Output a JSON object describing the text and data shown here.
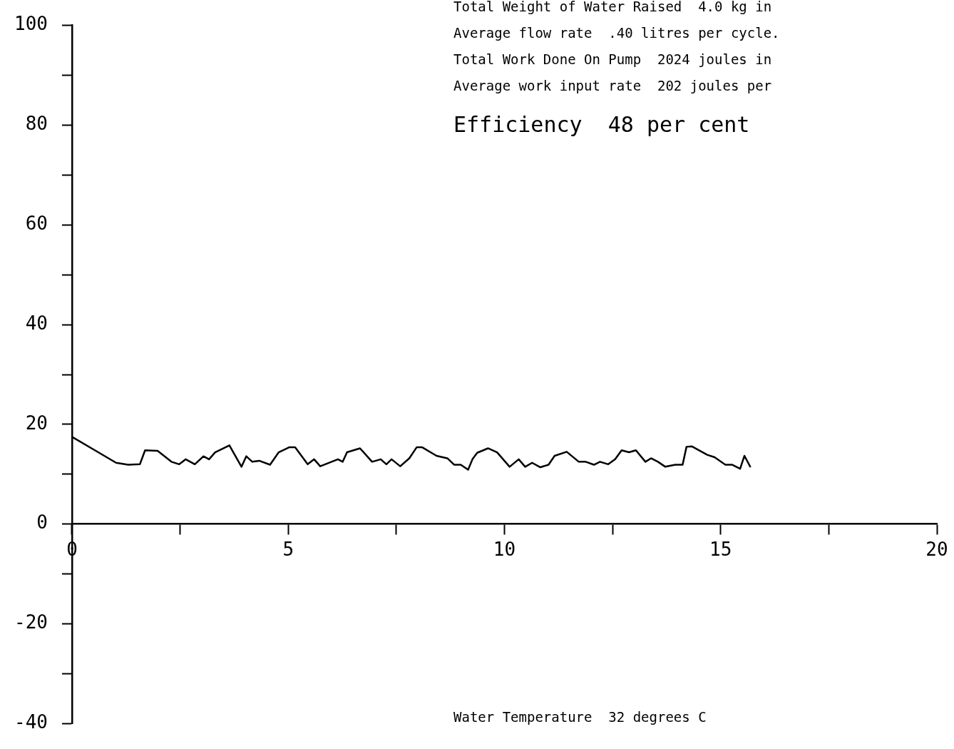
{
  "chart_data": {
    "type": "line",
    "x": [
      0,
      0.53,
      1.02,
      1.3,
      1.57,
      1.69,
      1.98,
      2.3,
      2.48,
      2.63,
      2.84,
      3.04,
      3.17,
      3.31,
      3.64,
      3.92,
      4.03,
      4.17,
      4.33,
      4.58,
      4.78,
      5.02,
      5.16,
      5.45,
      5.6,
      5.74,
      6.15,
      6.26,
      6.36,
      6.66,
      6.94,
      7.14,
      7.27,
      7.39,
      7.59,
      7.8,
      7.97,
      8.1,
      8.43,
      8.68,
      8.84,
      8.99,
      9.16,
      9.26,
      9.37,
      9.62,
      9.83,
      10.12,
      10.33,
      10.48,
      10.64,
      10.83,
      11.02,
      11.16,
      11.44,
      11.72,
      11.88,
      12.07,
      12.21,
      12.4,
      12.56,
      12.71,
      12.88,
      13.04,
      13.26,
      13.39,
      13.55,
      13.72,
      13.95,
      14.12,
      14.21,
      14.33,
      14.69,
      14.86,
      15.11,
      15.27,
      15.45,
      15.55,
      15.69
    ],
    "series": [
      {
        "color": "#000000",
        "values": [
          17.5,
          14.8,
          12.3,
          11.9,
          12.0,
          14.8,
          14.7,
          12.5,
          12.0,
          13.0,
          12.0,
          13.6,
          13.0,
          14.4,
          15.8,
          11.5,
          13.6,
          12.5,
          12.7,
          11.9,
          14.4,
          15.4,
          15.4,
          12.0,
          13.0,
          11.6,
          13.0,
          12.5,
          14.4,
          15.2,
          12.5,
          13.0,
          12.0,
          13.0,
          11.6,
          13.2,
          15.4,
          15.4,
          13.7,
          13.2,
          11.9,
          11.9,
          10.9,
          13.0,
          14.3,
          15.2,
          14.4,
          11.5,
          13.0,
          11.5,
          12.3,
          11.4,
          11.9,
          13.7,
          14.5,
          12.5,
          12.5,
          11.9,
          12.5,
          12.0,
          13.0,
          14.8,
          14.4,
          14.8,
          12.5,
          13.2,
          12.5,
          11.5,
          11.9,
          11.9,
          15.5,
          15.6,
          13.9,
          13.4,
          11.9,
          11.9,
          11.1,
          13.7,
          11.4
        ]
      }
    ],
    "xlim": [
      0,
      20
    ],
    "xticks": [
      0,
      {
        "value": 2.5,
        "label": null
      },
      5,
      {
        "value": 7.5,
        "label": null
      },
      10,
      {
        "value": 12.5,
        "label": null
      },
      15,
      {
        "value": 17.5,
        "label": null
      },
      20
    ],
    "ylim": [
      -40,
      100
    ],
    "yticks": [
      -40,
      {
        "value": -30,
        "label": null
      },
      -20,
      {
        "value": -10,
        "label": null
      },
      0,
      {
        "value": 10,
        "label": null
      },
      20,
      {
        "value": 30,
        "label": null
      },
      40,
      {
        "value": 50,
        "label": null
      },
      60,
      {
        "value": 70,
        "label": null
      },
      80,
      {
        "value": 90,
        "label": null
      },
      100
    ],
    "marker": "none",
    "line_style": "solid",
    "grid": false,
    "legend": false,
    "annotations": [
      "Total Weight of Water Raised  4.0 kg in",
      "Average flow rate  .40 litres per cycle.",
      "Total Work Done On Pump  2024 joules in",
      "Average work input rate  202 joules per",
      "Efficiency  48 per cent",
      "Water Temperature  32 degrees C"
    ]
  }
}
